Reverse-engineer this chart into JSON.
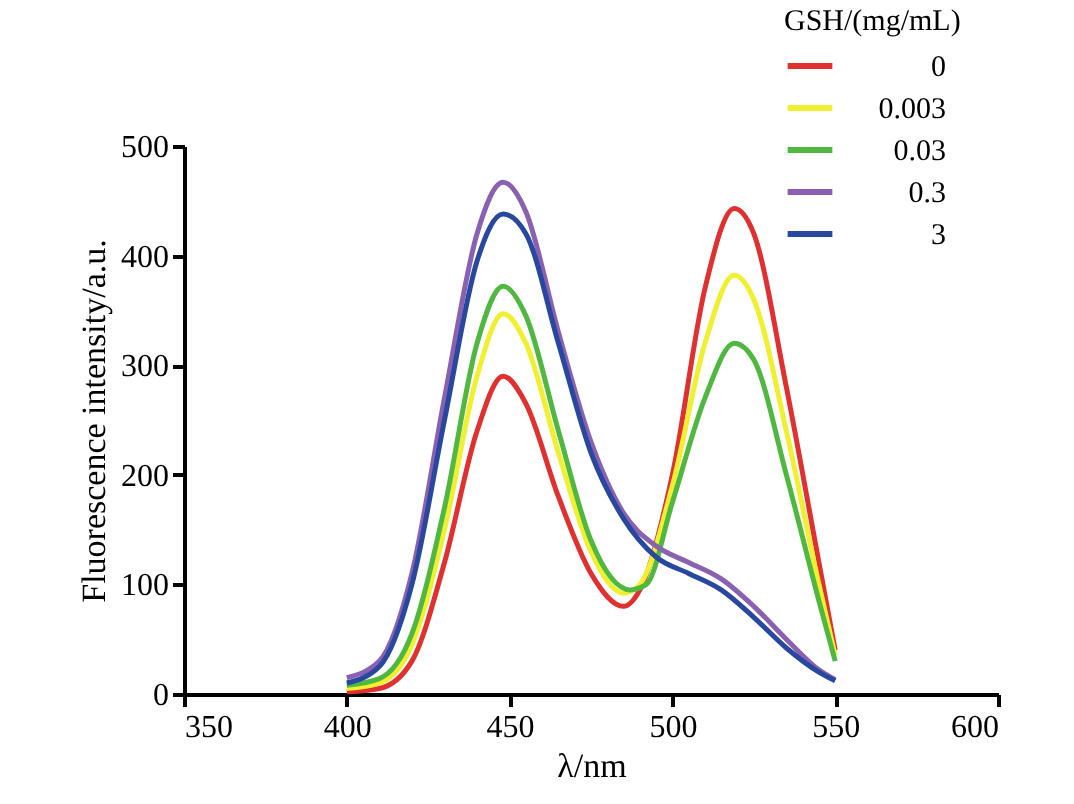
{
  "chart_data": {
    "type": "line",
    "xlabel": "λ/nm",
    "ylabel": "Fluorescence intensity/a.u.",
    "legend_title": "GSH/(mg/mL)",
    "legend": "top right",
    "grid": false,
    "line_style": "solid",
    "marker": "none",
    "xlim": [
      350,
      600
    ],
    "xticks": [
      350,
      400,
      450,
      500,
      550,
      600
    ],
    "ylim": [
      0,
      500
    ],
    "yticks": [
      0,
      100,
      200,
      300,
      400,
      500
    ],
    "series": [
      {
        "name": "0",
        "color": "#e03030",
        "x": [
          400,
          410,
          420,
          430,
          440,
          448,
          455,
          465,
          475,
          485,
          490,
          500,
          510,
          519,
          525,
          535,
          545,
          550
        ],
        "values": [
          2,
          5,
          30,
          120,
          240,
          290,
          265,
          180,
          110,
          80,
          95,
          200,
          370,
          443,
          420,
          280,
          120,
          40
        ]
      },
      {
        "name": "0.003",
        "color": "#f0f030",
        "x": [
          400,
          410,
          420,
          430,
          440,
          448,
          455,
          465,
          475,
          485,
          490,
          500,
          510,
          519,
          525,
          535,
          545,
          550
        ],
        "values": [
          5,
          10,
          45,
          150,
          290,
          347,
          320,
          220,
          130,
          92,
          100,
          190,
          320,
          382,
          360,
          240,
          100,
          35
        ]
      },
      {
        "name": "0.03",
        "color": "#50b840",
        "x": [
          400,
          410,
          420,
          430,
          440,
          448,
          455,
          465,
          475,
          487,
          492,
          500,
          510,
          519,
          525,
          535,
          545,
          550
        ],
        "values": [
          8,
          14,
          55,
          170,
          320,
          372,
          345,
          240,
          140,
          95,
          100,
          175,
          270,
          320,
          305,
          200,
          85,
          30
        ]
      },
      {
        "name": "0.3",
        "color": "#8a60b0",
        "x": [
          400,
          410,
          420,
          430,
          440,
          448,
          455,
          465,
          475,
          485,
          495,
          505,
          515,
          525,
          535,
          545,
          550
        ],
        "values": [
          15,
          30,
          110,
          270,
          420,
          467,
          440,
          330,
          230,
          165,
          135,
          120,
          105,
          80,
          50,
          22,
          13
        ]
      },
      {
        "name": "3",
        "color": "#2848a0",
        "x": [
          400,
          410,
          420,
          430,
          440,
          448,
          455,
          465,
          475,
          485,
          495,
          505,
          515,
          525,
          535,
          545,
          550
        ],
        "values": [
          10,
          25,
          100,
          250,
          395,
          438,
          420,
          320,
          220,
          160,
          125,
          110,
          95,
          70,
          42,
          20,
          12
        ]
      }
    ]
  }
}
